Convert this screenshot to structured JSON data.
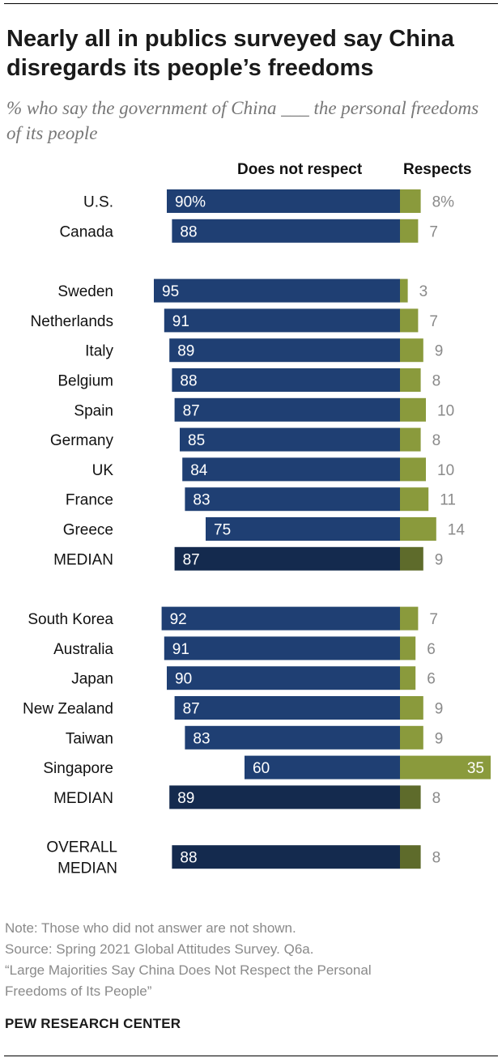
{
  "title": "Nearly all in publics surveyed say China disregards its people’s freedoms",
  "subtitle": "% who say the government of China ___ the personal freedoms of its people",
  "colors": {
    "not_respect": "#1f3f73",
    "not_respect_median": "#142a4e",
    "respects": "#8a9a3c",
    "respects_median": "#5e6b2b",
    "value_label_out": "#8a8a8a",
    "value_label_in": "#ffffff"
  },
  "chart_data": {
    "type": "bar",
    "orientation": "horizontal-diverging",
    "series": [
      {
        "name": "Does not respect",
        "key": "not_respect"
      },
      {
        "name": "Respects",
        "key": "respects"
      }
    ],
    "groups": [
      {
        "rows": [
          {
            "label": "U.S.",
            "not_respect": 90,
            "respects": 8,
            "not_respect_label": "90%",
            "respects_label": "8%"
          },
          {
            "label": "Canada",
            "not_respect": 88,
            "respects": 7,
            "not_respect_label": "88",
            "respects_label": "7"
          }
        ]
      },
      {
        "rows": [
          {
            "label": "Sweden",
            "not_respect": 95,
            "respects": 3,
            "not_respect_label": "95",
            "respects_label": "3"
          },
          {
            "label": "Netherlands",
            "not_respect": 91,
            "respects": 7,
            "not_respect_label": "91",
            "respects_label": "7"
          },
          {
            "label": "Italy",
            "not_respect": 89,
            "respects": 9,
            "not_respect_label": "89",
            "respects_label": "9"
          },
          {
            "label": "Belgium",
            "not_respect": 88,
            "respects": 8,
            "not_respect_label": "88",
            "respects_label": "8"
          },
          {
            "label": "Spain",
            "not_respect": 87,
            "respects": 10,
            "not_respect_label": "87",
            "respects_label": "10"
          },
          {
            "label": "Germany",
            "not_respect": 85,
            "respects": 8,
            "not_respect_label": "85",
            "respects_label": "8"
          },
          {
            "label": "UK",
            "not_respect": 84,
            "respects": 10,
            "not_respect_label": "84",
            "respects_label": "10"
          },
          {
            "label": "France",
            "not_respect": 83,
            "respects": 11,
            "not_respect_label": "83",
            "respects_label": "11"
          },
          {
            "label": "Greece",
            "not_respect": 75,
            "respects": 14,
            "not_respect_label": "75",
            "respects_label": "14"
          },
          {
            "label": "MEDIAN",
            "not_respect": 87,
            "respects": 9,
            "not_respect_label": "87",
            "respects_label": "9",
            "median": true
          }
        ]
      },
      {
        "rows": [
          {
            "label": "South Korea",
            "not_respect": 92,
            "respects": 7,
            "not_respect_label": "92",
            "respects_label": "7"
          },
          {
            "label": "Australia",
            "not_respect": 91,
            "respects": 6,
            "not_respect_label": "91",
            "respects_label": "6"
          },
          {
            "label": "Japan",
            "not_respect": 90,
            "respects": 6,
            "not_respect_label": "90",
            "respects_label": "6"
          },
          {
            "label": "New Zealand",
            "not_respect": 87,
            "respects": 9,
            "not_respect_label": "87",
            "respects_label": "9"
          },
          {
            "label": "Taiwan",
            "not_respect": 83,
            "respects": 9,
            "not_respect_label": "83",
            "respects_label": "9"
          },
          {
            "label": "Singapore",
            "not_respect": 60,
            "respects": 35,
            "not_respect_label": "60",
            "respects_label": "35"
          },
          {
            "label": "MEDIAN",
            "not_respect": 89,
            "respects": 8,
            "not_respect_label": "89",
            "respects_label": "8",
            "median": true
          }
        ]
      },
      {
        "rows": [
          {
            "label": "OVERALL MEDIAN",
            "label_lines": [
              "OVERALL",
              "MEDIAN"
            ],
            "not_respect": 88,
            "respects": 8,
            "not_respect_label": "88",
            "respects_label": "8",
            "median": true
          }
        ]
      }
    ]
  },
  "notes": {
    "note": "Note: Those who did not answer are not shown.",
    "source": "Source: Spring 2021 Global Attitudes Survey. Q6a.",
    "report_line1": "“Large Majorities Say China Does Not Respect the Personal",
    "report_line2": "Freedoms of Its People”"
  },
  "org": "PEW RESEARCH CENTER"
}
